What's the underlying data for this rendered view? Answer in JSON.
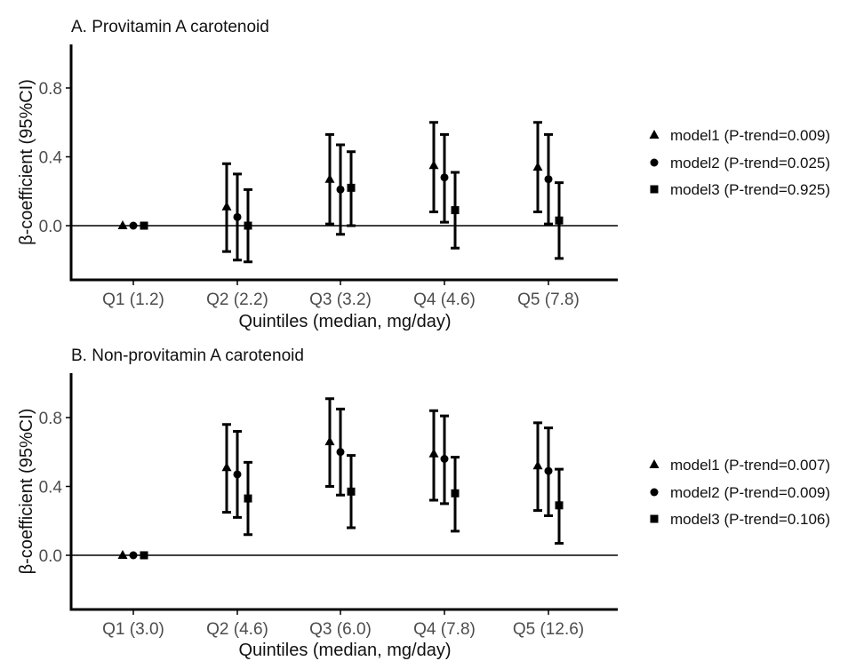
{
  "chart_data": [
    {
      "type": "scatter",
      "title": "A. Provitamin A carotenoid",
      "xlabel": "Quintiles (median, mg/day)",
      "ylabel": "β-coefficient (95%CI)",
      "categories": [
        "Q1 (1.2)",
        "Q2 (2.2)",
        "Q3 (3.2)",
        "Q4 (4.6)",
        "Q5 (7.8)"
      ],
      "y_ticks": [
        "0.0",
        "0.4",
        "0.8"
      ],
      "y_tick_values": [
        0.0,
        0.4,
        0.8
      ],
      "ylim": [
        -0.31,
        1.06
      ],
      "reference_line": 0,
      "legend_position": "right",
      "series": [
        {
          "name": "model1 (P-trend=0.009)",
          "marker": "triangle",
          "values": [
            0.0,
            0.11,
            0.27,
            0.35,
            0.34
          ],
          "lower": [
            0.0,
            -0.15,
            0.01,
            0.08,
            0.08
          ],
          "upper": [
            0.0,
            0.36,
            0.53,
            0.6,
            0.6
          ]
        },
        {
          "name": "model2 (P-trend=0.025)",
          "marker": "circle",
          "values": [
            0.0,
            0.05,
            0.21,
            0.28,
            0.27
          ],
          "lower": [
            0.0,
            -0.2,
            -0.05,
            0.02,
            0.01
          ],
          "upper": [
            0.0,
            0.3,
            0.47,
            0.53,
            0.53
          ]
        },
        {
          "name": "model3 (P-trend=0.925)",
          "marker": "square",
          "values": [
            0.0,
            0.0,
            0.22,
            0.09,
            0.03
          ],
          "lower": [
            0.0,
            -0.21,
            0.0,
            -0.13,
            -0.19
          ],
          "upper": [
            0.0,
            0.21,
            0.43,
            0.31,
            0.25
          ]
        }
      ]
    },
    {
      "type": "scatter",
      "title": "B. Non-provitamin A carotenoid",
      "xlabel": "Quintiles (median, mg/day)",
      "ylabel": "β-coefficient (95%CI)",
      "categories": [
        "Q1 (3.0)",
        "Q2 (4.6)",
        "Q3 (6.0)",
        "Q4 (7.8)",
        "Q5 (12.6)"
      ],
      "y_ticks": [
        "0.0",
        "0.4",
        "0.8"
      ],
      "y_tick_values": [
        0.0,
        0.4,
        0.8
      ],
      "ylim": [
        -0.31,
        1.06
      ],
      "reference_line": 0,
      "legend_position": "right",
      "series": [
        {
          "name": "model1 (P-trend=0.007)",
          "marker": "triangle",
          "values": [
            0.0,
            0.51,
            0.66,
            0.59,
            0.52
          ],
          "lower": [
            0.0,
            0.25,
            0.4,
            0.32,
            0.26
          ],
          "upper": [
            0.0,
            0.76,
            0.91,
            0.84,
            0.77
          ]
        },
        {
          "name": "model2 (P-trend=0.009)",
          "marker": "circle",
          "values": [
            0.0,
            0.47,
            0.6,
            0.56,
            0.49
          ],
          "lower": [
            0.0,
            0.22,
            0.35,
            0.3,
            0.23
          ],
          "upper": [
            0.0,
            0.72,
            0.85,
            0.81,
            0.74
          ]
        },
        {
          "name": "model3 (P-trend=0.106)",
          "marker": "square",
          "values": [
            0.0,
            0.33,
            0.37,
            0.36,
            0.29
          ],
          "lower": [
            0.0,
            0.12,
            0.16,
            0.14,
            0.07
          ],
          "upper": [
            0.0,
            0.54,
            0.58,
            0.57,
            0.5
          ]
        }
      ]
    }
  ]
}
